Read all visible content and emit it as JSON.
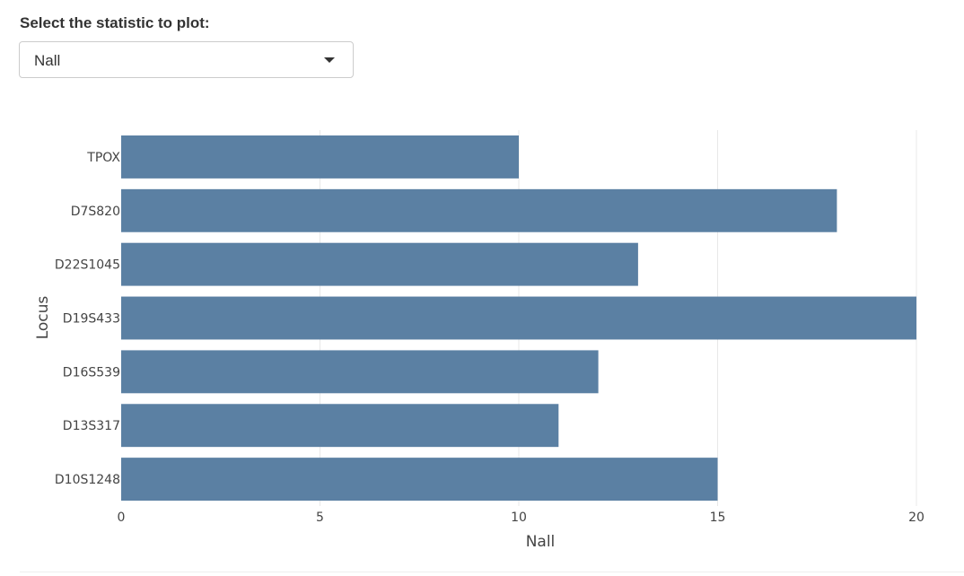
{
  "control": {
    "label": "Select the statistic to plot:",
    "selected": "Nall"
  },
  "colors": {
    "bar": "#5b80a3",
    "grid": "#e8e8e8",
    "text": "#444444"
  },
  "chart_data": {
    "type": "bar",
    "orientation": "horizontal",
    "categories": [
      "TPOX",
      "D7S820",
      "D22S1045",
      "D19S433",
      "D16S539",
      "D13S317",
      "D10S1248"
    ],
    "values": [
      10,
      18,
      13,
      20,
      12,
      11,
      15
    ],
    "xlabel": "Nall",
    "ylabel": "Locus",
    "xlim": [
      0,
      20
    ],
    "xticks": [
      0,
      5,
      10,
      15,
      20
    ],
    "grid": true
  }
}
